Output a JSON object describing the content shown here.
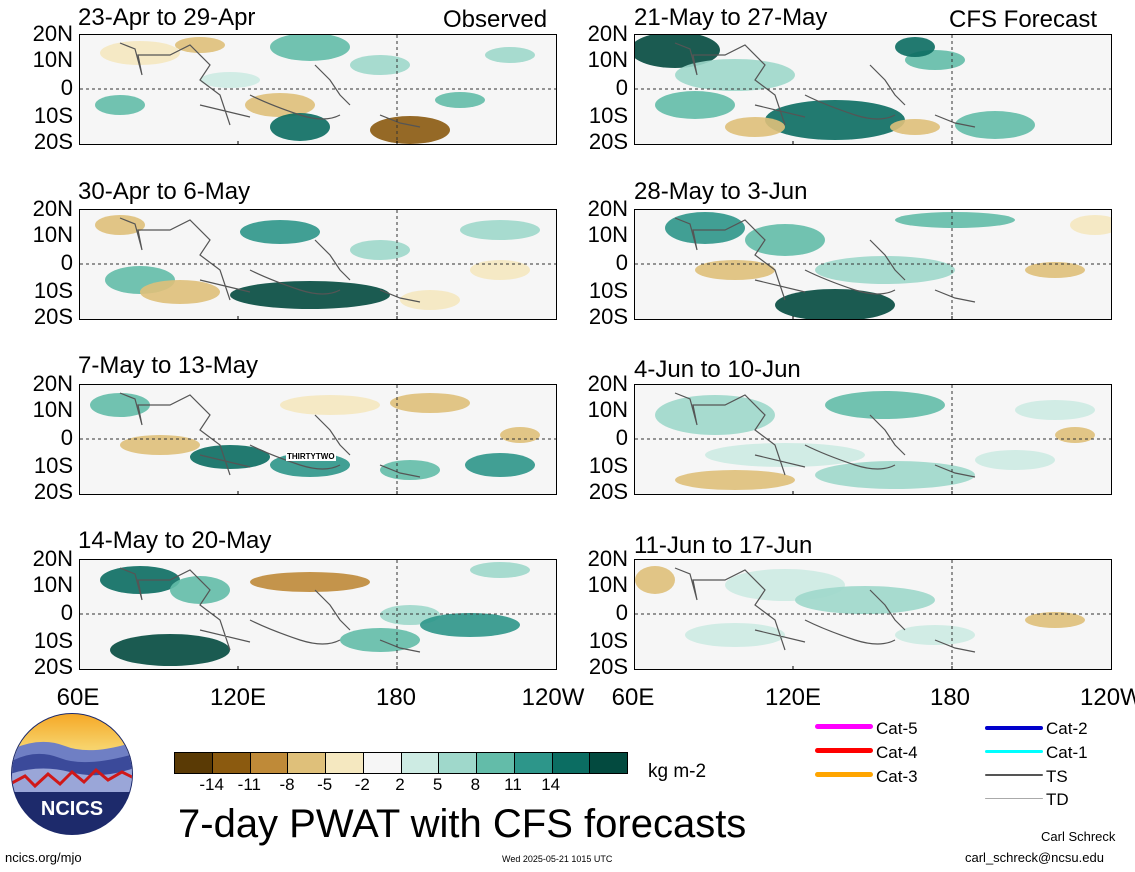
{
  "panels": [
    {
      "title": "23-Apr to 29-Apr",
      "tag": "Observed"
    },
    {
      "title": "30-Apr to 6-May",
      "tag": ""
    },
    {
      "title": "7-May to 13-May",
      "tag": "",
      "storm_label": "THIRTYTWO"
    },
    {
      "title": "14-May to 20-May",
      "tag": ""
    },
    {
      "title": "21-May to 27-May",
      "tag": "CFS Forecast"
    },
    {
      "title": "28-May to 3-Jun",
      "tag": ""
    },
    {
      "title": "4-Jun to 10-Jun",
      "tag": ""
    },
    {
      "title": "11-Jun to 17-Jun",
      "tag": ""
    }
  ],
  "lat_labels": [
    "20N",
    "10N",
    "0",
    "10S",
    "20S"
  ],
  "lon_labels": [
    "60E",
    "120E",
    "180",
    "120W"
  ],
  "colorbar": {
    "colors": [
      "#5a3a05",
      "#8b5a0f",
      "#bf8a38",
      "#dfc07a",
      "#f5e8c0",
      "#f6f6f6",
      "#cdebe3",
      "#9fd8cb",
      "#63bca9",
      "#2d968a",
      "#0b6d62",
      "#034a3f"
    ],
    "ticks": [
      "-14",
      "-11",
      "-8",
      "-5",
      "-2",
      "2",
      "5",
      "8",
      "11",
      "14"
    ],
    "units": "kg m-2"
  },
  "title": "7-day PWAT with CFS forecasts",
  "logo_text": "NCICS",
  "url": "ncics.org/mjo",
  "timestamp": "Wed 2025-05-21 1015 UTC",
  "author": "Carl Schreck",
  "email": "carl_schreck@ncsu.edu",
  "legend": [
    {
      "label": "Cat-5",
      "color": "#ff00ff"
    },
    {
      "label": "Cat-4",
      "color": "#ff0000"
    },
    {
      "label": "Cat-3",
      "color": "#ffa500"
    },
    {
      "label": "Cat-2",
      "color": "#0000cc"
    },
    {
      "label": "Cat-1",
      "color": "#00ffff"
    },
    {
      "label": "TS",
      "color": "#555555"
    },
    {
      "label": "TD",
      "color": "#aaaaaa"
    }
  ]
}
